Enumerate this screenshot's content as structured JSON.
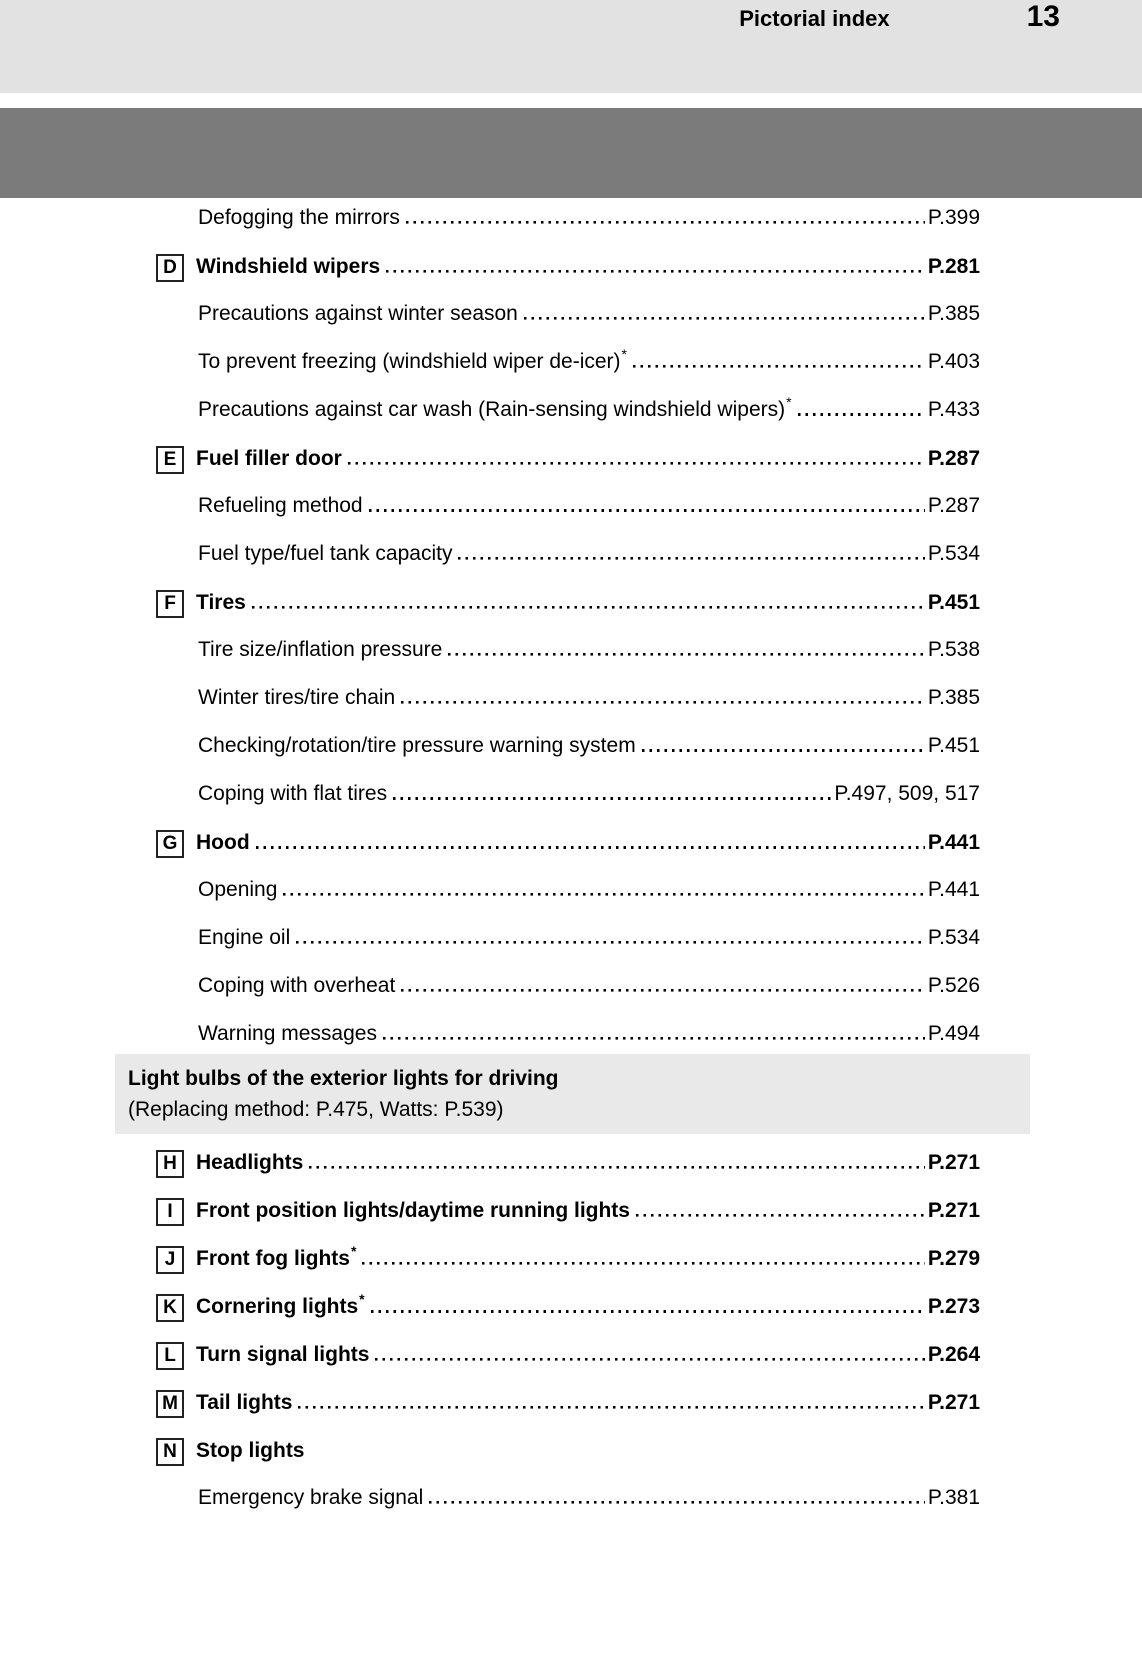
{
  "header": {
    "title": "Pictorial index",
    "page_number": "13"
  },
  "colors": {
    "header_bg": "#e2e2e2",
    "band_bg": "#7b7b7b",
    "note_bg": "#e9e9e9",
    "badge_border": "#222222",
    "text": "#000000"
  },
  "index": {
    "items": [
      {
        "label": "Defogging the mirrors",
        "page": "P.399"
      },
      {
        "badge": "D",
        "label": "Windshield wipers",
        "page": "P.281"
      },
      {
        "label": "Precautions against winter season",
        "page": "P.385"
      },
      {
        "label": "To prevent freezing (windshield wiper de-icer)",
        "star": "*",
        "page": "P.403"
      },
      {
        "label": "Precautions against car wash (Rain-sensing windshield wipers)",
        "star": "*",
        "page": "P.433"
      },
      {
        "badge": "E",
        "label": "Fuel filler door",
        "page": "P.287"
      },
      {
        "label": "Refueling method",
        "page": "P.287"
      },
      {
        "label": "Fuel type/fuel tank capacity",
        "page": "P.534"
      },
      {
        "badge": "F",
        "label": "Tires",
        "page": "P.451"
      },
      {
        "label": "Tire size/inflation pressure",
        "page": "P.538"
      },
      {
        "label": "Winter tires/tire chain",
        "page": "P.385"
      },
      {
        "label": "Checking/rotation/tire pressure warning system",
        "page": "P.451"
      },
      {
        "label": "Coping with flat tires",
        "page": "P.497, 509, 517"
      },
      {
        "badge": "G",
        "label": "Hood",
        "page": "P.441"
      },
      {
        "label": "Opening",
        "page": "P.441"
      },
      {
        "label": "Engine oil",
        "page": "P.534"
      },
      {
        "label": "Coping with overheat",
        "page": "P.526"
      },
      {
        "label": "Warning messages",
        "page": "P.494"
      },
      {
        "note": true,
        "title": "Light bulbs of the exterior lights for driving",
        "subtitle": "(Replacing method: P.475, Watts: P.539)"
      },
      {
        "badge": "H",
        "label": "Headlights",
        "page": "P.271"
      },
      {
        "badge": "I",
        "label": "Front position lights/daytime running lights",
        "page": "P.271"
      },
      {
        "badge": "J",
        "label": "Front fog lights",
        "star": "*",
        "page": "P.279"
      },
      {
        "badge": "K",
        "label": "Cornering lights",
        "star": "*",
        "page": "P.273"
      },
      {
        "badge": "L",
        "label": "Turn signal lights",
        "page": "P.264"
      },
      {
        "badge": "M",
        "label": "Tail lights",
        "page": "P.271"
      },
      {
        "badge": "N",
        "label": "Stop lights"
      },
      {
        "label": "Emergency brake signal",
        "page": "P.381"
      }
    ]
  }
}
